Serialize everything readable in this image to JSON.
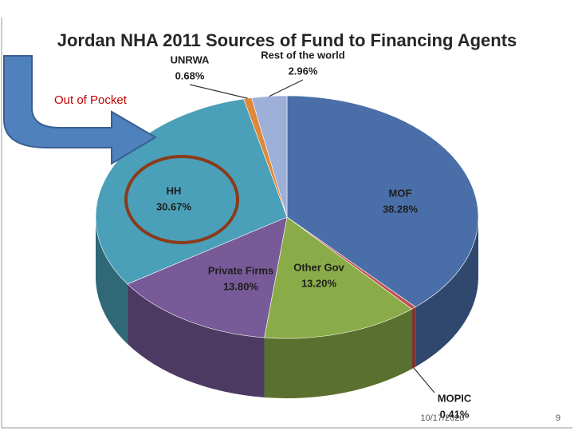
{
  "chart_data": {
    "type": "pie",
    "title": "Jordan NHA 2011 Sources of Fund to Financing Agents",
    "categories": [
      "MOF",
      "MOPIC",
      "Other Gov",
      "Private Firms",
      "HH",
      "UNRWA",
      "Rest of the world"
    ],
    "values": [
      38.28,
      0.41,
      13.2,
      13.8,
      30.67,
      0.68,
      2.96
    ],
    "value_labels": [
      "38.28%",
      "0.41%",
      "13.20%",
      "13.80%",
      "30.67%",
      "0.68%",
      "2.96%"
    ],
    "colors": [
      "#4a6fa8",
      "#c0504d",
      "#8aac48",
      "#775a97",
      "#4aa0b8",
      "#e0883a",
      "#9db0d8"
    ],
    "annotation": "Out of Pocket"
  },
  "footer": {
    "date": "10/17/2020",
    "page": "9"
  }
}
